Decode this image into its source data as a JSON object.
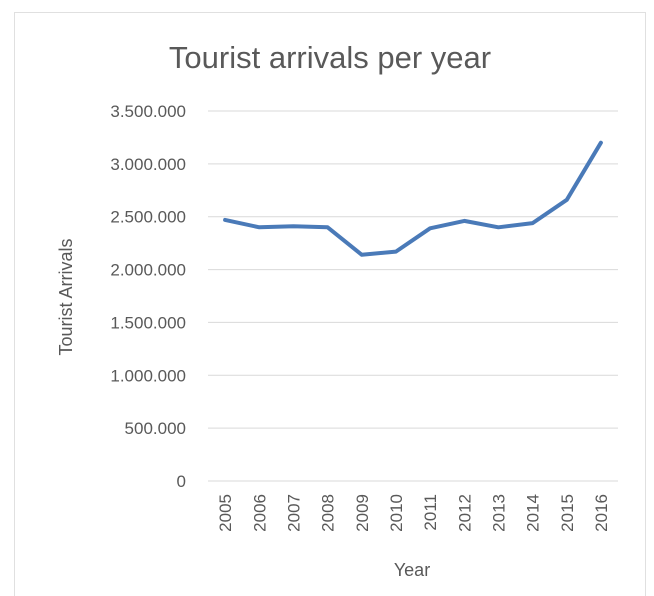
{
  "chart_data": {
    "type": "line",
    "title": "Tourist arrivals per year",
    "xlabel": "Year",
    "ylabel": "Tourist Arrivals",
    "categories": [
      "2005",
      "2006",
      "2007",
      "2008",
      "2009",
      "2010",
      "2011",
      "2012",
      "2013",
      "2014",
      "2015",
      "2016"
    ],
    "series": [
      {
        "values": [
          2470000,
          2400000,
          2410000,
          2400000,
          2140000,
          2170000,
          2390000,
          2460000,
          2400000,
          2440000,
          2660000,
          3200000
        ]
      }
    ],
    "ylim": [
      0,
      3500000
    ],
    "yticks": [
      0,
      500000,
      1000000,
      1500000,
      2000000,
      2500000,
      3000000,
      3500000
    ],
    "ytick_labels": [
      "0",
      "500.000",
      "1.000.000",
      "1.500.000",
      "2.000.000",
      "2.500.000",
      "3.000.000",
      "3.500.000"
    ],
    "grid": true,
    "legend": "none",
    "colors": {
      "series": "#4a7ab8",
      "grid": "#d9d9d9",
      "text": "#595959"
    }
  }
}
